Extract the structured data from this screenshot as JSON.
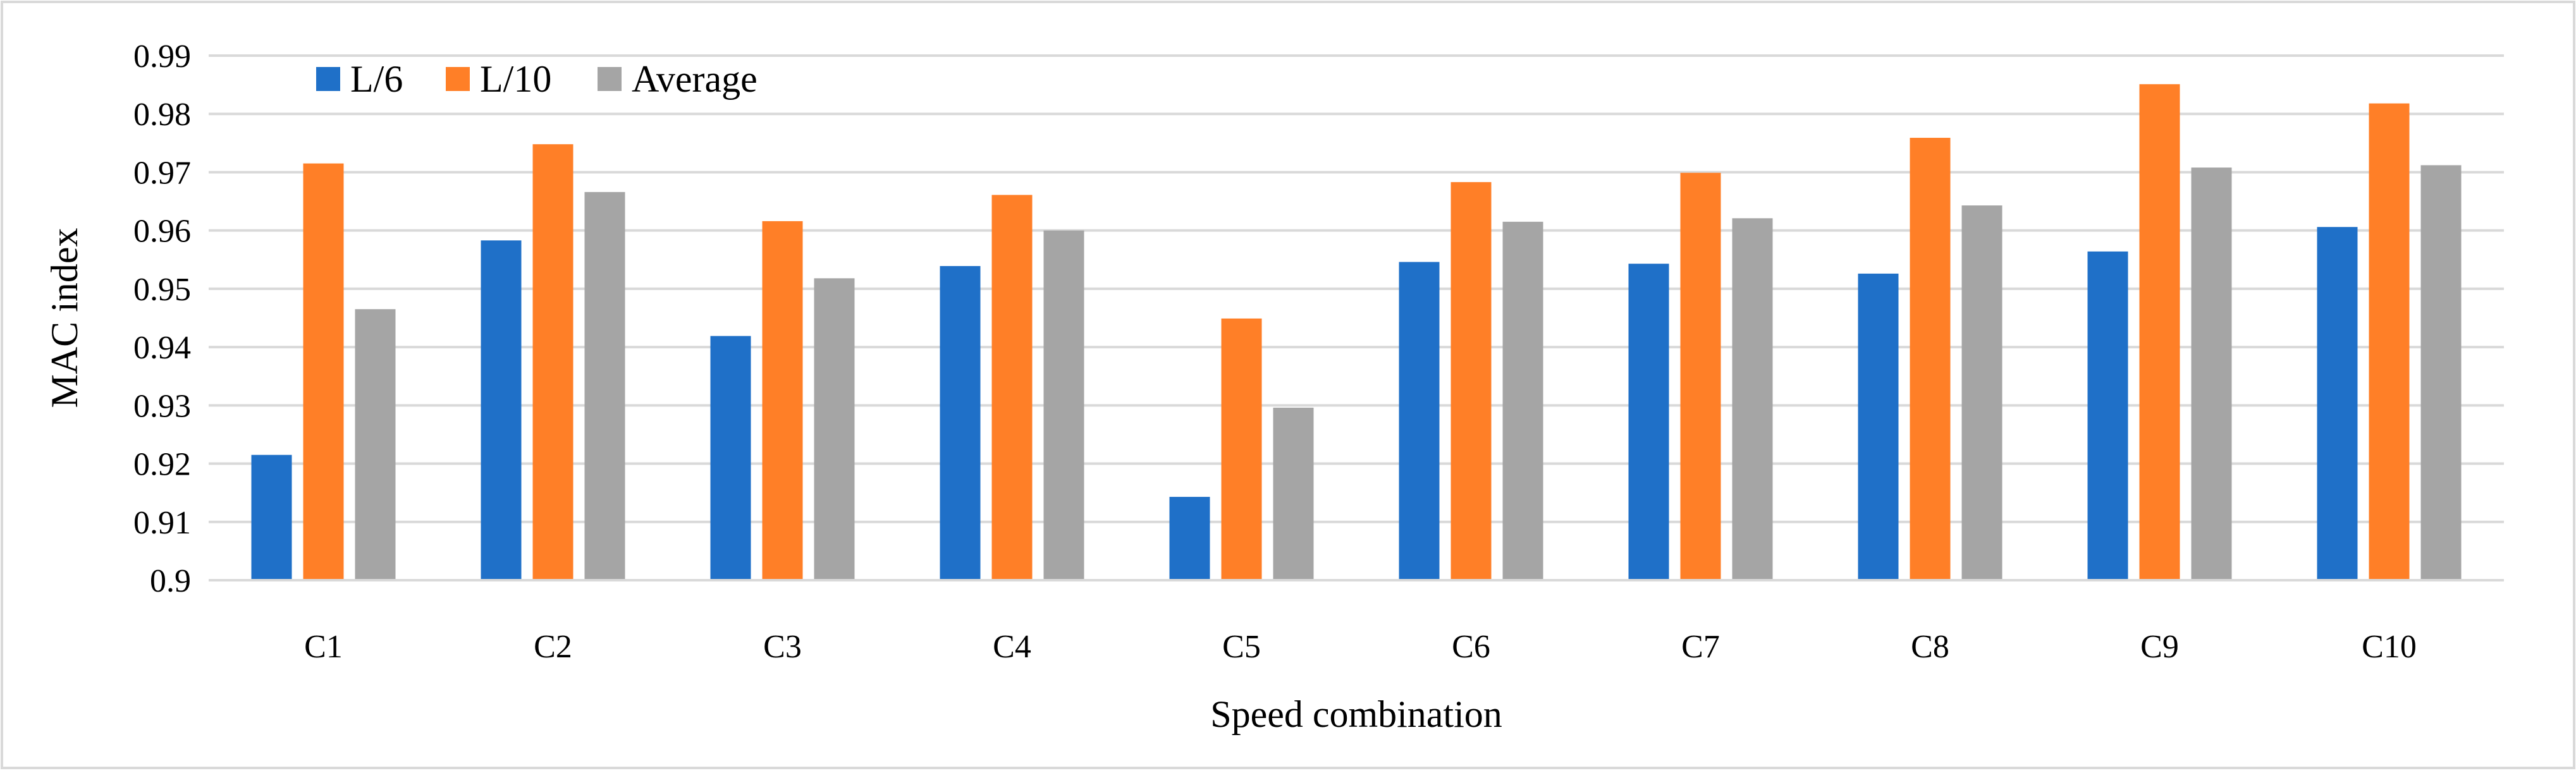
{
  "chart_data": {
    "type": "bar",
    "title": "",
    "xlabel": "Speed combination",
    "ylabel": "MAC index",
    "categories": [
      "C1",
      "C2",
      "C3",
      "C4",
      "C5",
      "C6",
      "C7",
      "C8",
      "C9",
      "C10"
    ],
    "series": [
      {
        "name": "L/6",
        "color": "#1F70C8",
        "values": [
          0.9215,
          0.9583,
          0.9419,
          0.9539,
          0.9143,
          0.9546,
          0.9543,
          0.9526,
          0.9564,
          0.9606
        ]
      },
      {
        "name": "L/10",
        "color": "#FF7F27",
        "values": [
          0.9715,
          0.9748,
          0.9616,
          0.9661,
          0.9449,
          0.9683,
          0.9699,
          0.9759,
          0.9851,
          0.9818
        ]
      },
      {
        "name": "Average",
        "color": "#A5A5A5",
        "values": [
          0.9465,
          0.9666,
          0.9518,
          0.96,
          0.9296,
          0.9615,
          0.9621,
          0.9643,
          0.9708,
          0.9712
        ]
      }
    ],
    "ylim": [
      0.9,
      0.99
    ],
    "yticks": [
      "0.9",
      "0.91",
      "0.92",
      "0.93",
      "0.94",
      "0.95",
      "0.96",
      "0.97",
      "0.98",
      "0.99"
    ],
    "grid": true,
    "legend_position": "top-left"
  }
}
